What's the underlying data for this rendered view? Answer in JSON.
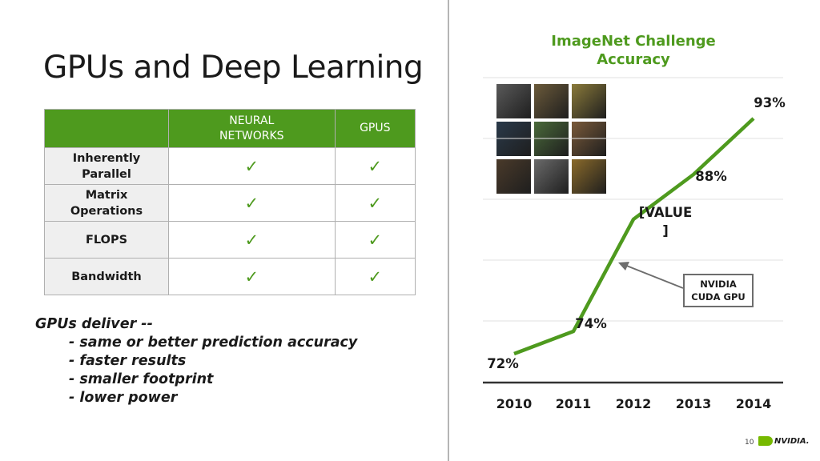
{
  "slide": {
    "title": "GPUs and Deep Learning",
    "page_number": "10",
    "brand": "NVIDIA."
  },
  "table": {
    "columns": [
      "NEURAL\nNETWORKS",
      "GPUS"
    ],
    "rows": [
      {
        "label": "Inherently Parallel",
        "cells": [
          "✓",
          "✓"
        ]
      },
      {
        "label": "Matrix Operations",
        "cells": [
          "✓",
          "✓"
        ]
      },
      {
        "label": "FLOPS",
        "cells": [
          "✓",
          "✓"
        ]
      },
      {
        "label": "Bandwidth",
        "cells": [
          "✓",
          "✓"
        ]
      }
    ]
  },
  "bullets": {
    "heading": "GPUs deliver --",
    "items": [
      "- same or better prediction accuracy",
      "- faster results",
      "- smaller footprint",
      "- lower power"
    ]
  },
  "chart": {
    "title": "ImageNet Challenge Accuracy",
    "callout": "NVIDIA CUDA GPU",
    "accent_color": "#4e9a1e",
    "thumbnail_colors": [
      "#5a5a5a",
      "#6b5a3a",
      "#8a7a3a",
      "#2a3a4a",
      "#4a6a3a",
      "#7a5a3a",
      "#4a3a2a",
      "#6a6a6a",
      "#8a6a2a"
    ]
  },
  "chart_data": {
    "type": "line",
    "title": "ImageNet Challenge Accuracy",
    "x": [
      "2010",
      "2011",
      "2012",
      "2013",
      "2014"
    ],
    "series": [
      {
        "values": [
          72,
          74,
          84,
          88,
          93
        ]
      }
    ],
    "data_labels": [
      "72%",
      "74%",
      "[VALUE\n]",
      "88%",
      "93%"
    ],
    "xlabel": "",
    "ylabel": "",
    "ylim": [
      70,
      95
    ],
    "grid": true,
    "legend": "none"
  }
}
